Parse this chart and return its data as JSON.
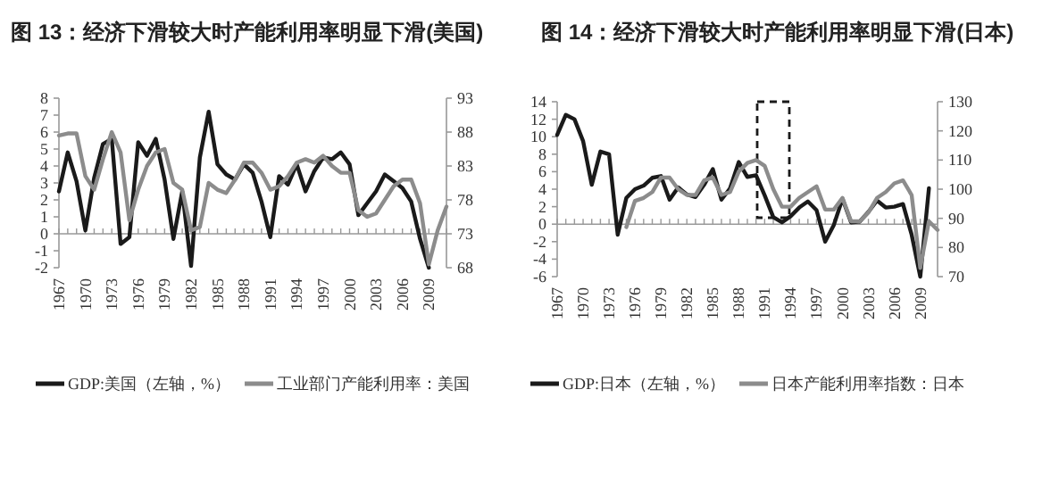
{
  "chart_data": [
    {
      "type": "line",
      "title": "图 13：经济下滑较大时产能利用率明显下滑(美国)",
      "legend": "bottom",
      "x": [
        1967,
        1968,
        1969,
        1970,
        1971,
        1972,
        1973,
        1974,
        1975,
        1976,
        1977,
        1978,
        1979,
        1980,
        1981,
        1982,
        1983,
        1984,
        1985,
        1986,
        1987,
        1988,
        1989,
        1990,
        1991,
        1992,
        1993,
        1994,
        1995,
        1996,
        1997,
        1998,
        1999,
        2000,
        2001,
        2002,
        2003,
        2004,
        2005,
        2006,
        2007,
        2008,
        2009,
        2010,
        2011
      ],
      "xlim": [
        1967,
        2011
      ],
      "xticks": [
        1967,
        {
          "value": 1968,
          "label": null
        },
        {
          "value": 1969,
          "label": null
        },
        1970,
        {
          "value": 1971,
          "label": null
        },
        {
          "value": 1972,
          "label": null
        },
        1973,
        {
          "value": 1974,
          "label": null
        },
        {
          "value": 1975,
          "label": null
        },
        1976,
        {
          "value": 1977,
          "label": null
        },
        {
          "value": 1978,
          "label": null
        },
        1979,
        {
          "value": 1980,
          "label": null
        },
        {
          "value": 1981,
          "label": null
        },
        1982,
        {
          "value": 1983,
          "label": null
        },
        {
          "value": 1984,
          "label": null
        },
        1985,
        {
          "value": 1986,
          "label": null
        },
        {
          "value": 1987,
          "label": null
        },
        1988,
        {
          "value": 1989,
          "label": null
        },
        {
          "value": 1990,
          "label": null
        },
        1991,
        {
          "value": 1992,
          "label": null
        },
        {
          "value": 1993,
          "label": null
        },
        1994,
        {
          "value": 1995,
          "label": null
        },
        {
          "value": 1996,
          "label": null
        },
        1997,
        {
          "value": 1998,
          "label": null
        },
        {
          "value": 1999,
          "label": null
        },
        2000,
        {
          "value": 2001,
          "label": null
        },
        {
          "value": 2002,
          "label": null
        },
        2003,
        {
          "value": 2004,
          "label": null
        },
        {
          "value": 2005,
          "label": null
        },
        2006,
        {
          "value": 2007,
          "label": null
        },
        {
          "value": 2008,
          "label": null
        },
        2009,
        {
          "value": 2010,
          "label": null
        },
        {
          "value": 2011,
          "label": null
        }
      ],
      "ylim": [
        -2,
        8
      ],
      "yticks": [
        -2,
        -1,
        0,
        1,
        2,
        3,
        4,
        5,
        6,
        7,
        8
      ],
      "y2lim": [
        68,
        93
      ],
      "y2ticks": [
        68,
        73,
        78,
        83,
        88,
        93
      ],
      "series": [
        {
          "name": "GDP:美国（左轴，%）",
          "color": "#1a1a1a",
          "values": [
            2.5,
            4.8,
            3.1,
            0.2,
            3.3,
            5.3,
            5.6,
            -0.6,
            -0.2,
            5.4,
            4.6,
            5.6,
            3.2,
            -0.3,
            2.5,
            -1.9,
            4.5,
            7.2,
            4.1,
            3.5,
            3.2,
            4.1,
            3.6,
            1.9,
            -0.2,
            3.4,
            2.9,
            4.1,
            2.5,
            3.7,
            4.5,
            4.4,
            4.8,
            4.1,
            1.1,
            1.8,
            2.5,
            3.5,
            3.1,
            2.7,
            1.9,
            -0.3,
            -2.0,
            null,
            null
          ]
        },
        {
          "name": "工业部门产能利用率：美国",
          "color": "#8c8c8c",
          "axis": "y2",
          "values": [
            87.5,
            87.8,
            87.8,
            81.5,
            79.5,
            84,
            88,
            85,
            75,
            79.5,
            83,
            85,
            85.5,
            80.5,
            79.5,
            73.5,
            74,
            80.5,
            79.5,
            79,
            81,
            83.5,
            83.5,
            82,
            79.5,
            80,
            81.5,
            83.5,
            84,
            83.5,
            84.5,
            83,
            82,
            82,
            76.5,
            75.5,
            76,
            78,
            80,
            81,
            81,
            77.5,
            68.5,
            73.5,
            77
          ]
        }
      ]
    },
    {
      "type": "line",
      "title": "图 14：经济下滑较大时产能利用率明显下滑(日本)",
      "legend": "bottom",
      "x": [
        1967,
        1968,
        1969,
        1970,
        1971,
        1972,
        1973,
        1974,
        1975,
        1976,
        1977,
        1978,
        1979,
        1980,
        1981,
        1982,
        1983,
        1984,
        1985,
        1986,
        1987,
        1988,
        1989,
        1990,
        1991,
        1992,
        1993,
        1994,
        1995,
        1996,
        1997,
        1998,
        1999,
        2000,
        2001,
        2002,
        2003,
        2004,
        2005,
        2006,
        2007,
        2008,
        2009,
        2010,
        2011
      ],
      "xlim": [
        1967,
        2011
      ],
      "xticks": [
        1967,
        {
          "value": 1968,
          "label": null
        },
        {
          "value": 1969,
          "label": null
        },
        1970,
        {
          "value": 1971,
          "label": null
        },
        {
          "value": 1972,
          "label": null
        },
        1973,
        {
          "value": 1974,
          "label": null
        },
        {
          "value": 1975,
          "label": null
        },
        1976,
        {
          "value": 1977,
          "label": null
        },
        {
          "value": 1978,
          "label": null
        },
        1979,
        {
          "value": 1980,
          "label": null
        },
        {
          "value": 1981,
          "label": null
        },
        1982,
        {
          "value": 1983,
          "label": null
        },
        {
          "value": 1984,
          "label": null
        },
        1985,
        {
          "value": 1986,
          "label": null
        },
        {
          "value": 1987,
          "label": null
        },
        1988,
        {
          "value": 1989,
          "label": null
        },
        {
          "value": 1990,
          "label": null
        },
        1991,
        {
          "value": 1992,
          "label": null
        },
        {
          "value": 1993,
          "label": null
        },
        1994,
        {
          "value": 1995,
          "label": null
        },
        {
          "value": 1996,
          "label": null
        },
        1997,
        {
          "value": 1998,
          "label": null
        },
        {
          "value": 1999,
          "label": null
        },
        2000,
        {
          "value": 2001,
          "label": null
        },
        {
          "value": 2002,
          "label": null
        },
        2003,
        {
          "value": 2004,
          "label": null
        },
        {
          "value": 2005,
          "label": null
        },
        2006,
        {
          "value": 2007,
          "label": null
        },
        {
          "value": 2008,
          "label": null
        },
        2009,
        {
          "value": 2010,
          "label": null
        },
        {
          "value": 2011,
          "label": null
        }
      ],
      "ylim": [
        -6,
        14
      ],
      "yticks": [
        -6,
        -4,
        -2,
        0,
        2,
        4,
        6,
        8,
        10,
        12,
        14
      ],
      "y2lim": [
        70,
        130
      ],
      "y2ticks": [
        70,
        80,
        90,
        100,
        110,
        120,
        130
      ],
      "series": [
        {
          "name": "GDP:日本（左轴，%）",
          "color": "#1a1a1a",
          "values": [
            10.2,
            12.5,
            12,
            9.5,
            4.5,
            8.3,
            8,
            -1.2,
            3,
            4,
            4.4,
            5.3,
            5.5,
            2.8,
            4.2,
            3.4,
            3.1,
            4.5,
            6.3,
            2.8,
            4.1,
            7.1,
            5.4,
            5.6,
            3.3,
            0.8,
            0.2,
            0.9,
            1.9,
            2.6,
            1.6,
            -2.0,
            -0.1,
            2.9,
            0.2,
            0.3,
            1.4,
            2.7,
            1.9,
            2.0,
            2.3,
            -1.2,
            -6,
            4.1,
            null
          ]
        },
        {
          "name": "日本产能利用率指数：日本",
          "color": "#8c8c8c",
          "axis": "y2",
          "values": [
            null,
            null,
            null,
            null,
            null,
            null,
            null,
            null,
            87,
            96,
            97,
            99,
            104,
            104,
            100,
            98,
            98,
            103,
            104,
            98,
            99,
            106,
            109,
            110,
            108,
            100,
            94,
            94,
            97,
            99,
            101,
            93,
            93,
            97,
            89,
            89,
            92,
            97,
            99,
            102,
            103,
            98,
            73,
            89,
            86
          ]
        }
      ]
    }
  ]
}
